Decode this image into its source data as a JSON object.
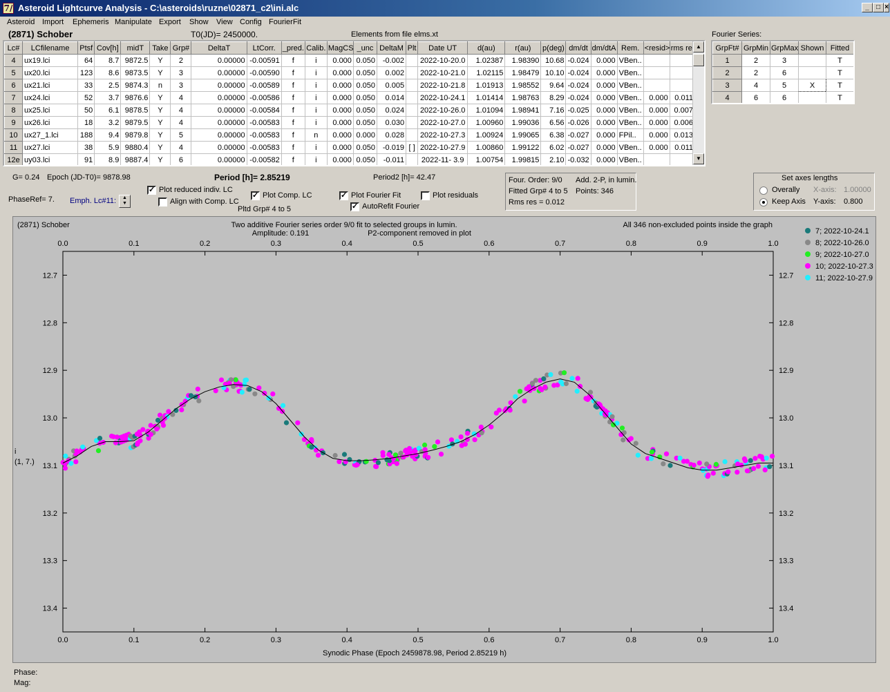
{
  "window": {
    "title": "Asteroid Lightcurve Analysis - C:\\asteroids\\ruzne\\02871_c2\\ini.alc",
    "app_icon": "7/"
  },
  "menu": [
    "Asteroid",
    "Import",
    "Ephemeris",
    "Manipulate",
    "Export",
    "Show",
    "View",
    "Config",
    "FourierFit"
  ],
  "header": {
    "object": "(2871) Schober",
    "t0": "T0(JD)= 2450000.",
    "elements": "Elements from file elms.xt",
    "fourier_label": "Fourier Series:"
  },
  "lc_table": {
    "columns": [
      "Lc#",
      "LCfilename",
      "Ptsf",
      "Cov[h]",
      "midT",
      "Take",
      "Grp#",
      "DeltaT",
      "LtCorr.",
      "_pred.",
      "Calib.",
      "MagCS",
      "_unc",
      "DeltaM",
      "Plt",
      "Date UT",
      "d(au)",
      "r(au)",
      "p(deg)",
      "dm/dt",
      "dm/dtA",
      "Rem.",
      "<resid>",
      "rms res"
    ],
    "rows": [
      [
        "4",
        "ux19.lci",
        "64",
        "8.7",
        "9872.5",
        "Y",
        "2",
        "0.00000",
        "-0.00591",
        "f",
        "i",
        "0.000",
        "0.050",
        "-0.002",
        "",
        "2022-10-20.0",
        "1.02387",
        "1.98390",
        "10.68",
        "-0.024",
        "0.000",
        "VBen..",
        "",
        ""
      ],
      [
        "5",
        "ux20.lci",
        "123",
        "8.6",
        "9873.5",
        "Y",
        "3",
        "0.00000",
        "-0.00590",
        "f",
        "i",
        "0.000",
        "0.050",
        "0.002",
        "",
        "2022-10-21.0",
        "1.02115",
        "1.98479",
        "10.10",
        "-0.024",
        "0.000",
        "VBen..",
        "",
        ""
      ],
      [
        "6",
        "ux21.lci",
        "33",
        "2.5",
        "9874.3",
        "n",
        "3",
        "0.00000",
        "-0.00589",
        "f",
        "i",
        "0.000",
        "0.050",
        "0.005",
        "",
        "2022-10-21.8",
        "1.01913",
        "1.98552",
        "9.64",
        "-0.024",
        "0.000",
        "VBen..",
        "",
        ""
      ],
      [
        "7",
        "ux24.lci",
        "52",
        "3.7",
        "9876.6",
        "Y",
        "4",
        "0.00000",
        "-0.00586",
        "f",
        "i",
        "0.000",
        "0.050",
        "0.014",
        "",
        "2022-10-24.1",
        "1.01414",
        "1.98763",
        "8.29",
        "-0.024",
        "0.000",
        "VBen..",
        "0.000",
        "0.011"
      ],
      [
        "8",
        "ux25.lci",
        "50",
        "6.1",
        "9878.5",
        "Y",
        "4",
        "0.00000",
        "-0.00584",
        "f",
        "i",
        "0.000",
        "0.050",
        "0.024",
        "",
        "2022-10-26.0",
        "1.01094",
        "1.98941",
        "7.16",
        "-0.025",
        "0.000",
        "VBen..",
        "0.000",
        "0.007"
      ],
      [
        "9",
        "ux26.lci",
        "18",
        "3.2",
        "9879.5",
        "Y",
        "4",
        "0.00000",
        "-0.00583",
        "f",
        "i",
        "0.000",
        "0.050",
        "0.030",
        "",
        "2022-10-27.0",
        "1.00960",
        "1.99036",
        "6.56",
        "-0.026",
        "0.000",
        "VBen..",
        "0.000",
        "0.006"
      ],
      [
        "10",
        "ux27_1.lci",
        "188",
        "9.4",
        "9879.8",
        "Y",
        "5",
        "0.00000",
        "-0.00583",
        "f",
        "n",
        "0.000",
        "0.000",
        "0.028",
        "",
        "2022-10-27.3",
        "1.00924",
        "1.99065",
        "6.38",
        "-0.027",
        "0.000",
        "FPil..",
        "0.000",
        "0.013"
      ],
      [
        "11",
        "ux27.lci",
        "38",
        "5.9",
        "9880.4",
        "Y",
        "4",
        "0.00000",
        "-0.00583",
        "f",
        "i",
        "0.000",
        "0.050",
        "-0.019",
        "[ ]",
        "2022-10-27.9",
        "1.00860",
        "1.99122",
        "6.02",
        "-0.027",
        "0.000",
        "VBen..",
        "0.000",
        "0.011"
      ],
      [
        "12e",
        "uy03.lci",
        "91",
        "8.9",
        "9887.4",
        "Y",
        "6",
        "0.00000",
        "-0.00582",
        "f",
        "i",
        "0.000",
        "0.050",
        "-0.011",
        "",
        "2022-11- 3.9",
        "1.00754",
        "1.99815",
        "2.10",
        "-0.032",
        "0.000",
        "VBen..",
        "",
        ""
      ]
    ]
  },
  "fourier_table": {
    "columns": [
      "GrpFt#",
      "GrpMin",
      "GrpMax",
      "Shown",
      "Fitted"
    ],
    "rows": [
      [
        "1",
        "2",
        "3",
        "",
        "T"
      ],
      [
        "2",
        "2",
        "6",
        "",
        "T"
      ],
      [
        "3",
        "4",
        "5",
        "X",
        "T"
      ],
      [
        "4",
        "6",
        "6",
        "",
        "T"
      ]
    ]
  },
  "controls": {
    "g": "G= 0.24",
    "epoch": "Epoch (JD-T0)= 9878.98",
    "period": "Period [h]= 2.85219",
    "period2": "Period2 [h]= 42.47",
    "phaseref": "PhaseRef= 7.",
    "emph": "Emph. Lc#11:",
    "plot_reduced": "Plot reduced indiv. LC",
    "align_comp": "Align with Comp. LC",
    "plot_comp": "Plot Comp. LC",
    "pltd_grp": "Pltd Grp#  4  to   5",
    "plot_fourier": "Plot Fourier Fit",
    "autorefit": "AutoRefit Fourier",
    "plot_residuals": "Plot residuals",
    "check_plot_reduced": true,
    "check_align_comp": false,
    "check_plot_comp": true,
    "check_plot_fourier": true,
    "check_autorefit": true,
    "check_plot_residuals": false
  },
  "fitinfo": {
    "order": "Four. Order:  9/0",
    "add": "Add. 2-P, in lumin.",
    "fitted": "Fitted Grp# 4 to 5",
    "points": "Points: 346",
    "rms": "Rms res      = 0.012"
  },
  "axes_box": {
    "title": "Set axes lengths",
    "overally": "Overally",
    "keep_axis": "Keep Axis",
    "xaxis_label": "X-axis:",
    "xaxis_value": "1.00000",
    "yaxis_label": "Y-axis:",
    "yaxis_value": "0.800",
    "selected": "keep_axis"
  },
  "chart_data": {
    "type": "scatter",
    "title_left": "(2871) Schober",
    "title_center_1": "Two additive Fourier series order 9/0 fit to selected groups in lumin.",
    "title_center_2": "Amplitude: 0.191",
    "title_center_3": "P2-component removed in plot",
    "title_right": "All 346 non-excluded points inside the graph",
    "xlabel": "Synodic Phase (Epoch 2459878.98, Period 2.85219 h)",
    "ylabel_1": "i",
    "ylabel_2": "(1, 7.)",
    "xlim": [
      0.0,
      1.0
    ],
    "ylim": [
      13.45,
      12.65
    ],
    "x_ticks": [
      "0.0",
      "0.1",
      "0.2",
      "0.3",
      "0.4",
      "0.5",
      "0.6",
      "0.7",
      "0.8",
      "0.9",
      "1.0"
    ],
    "y_ticks": [
      "12.7",
      "12.8",
      "12.9",
      "13.0",
      "13.1",
      "13.2",
      "13.3",
      "13.4"
    ],
    "legend_position": "right",
    "series": [
      {
        "name": "7; 2022-10-24.1",
        "color": "#1a7a7a"
      },
      {
        "name": "8; 2022-10-26.0",
        "color": "#888888"
      },
      {
        "name": "9; 2022-10-27.0",
        "color": "#22ee22"
      },
      {
        "name": "10; 2022-10-27.3",
        "color": "#ff00ff"
      },
      {
        "name": "11; 2022-10-27.9",
        "color": "#22eeff"
      }
    ],
    "fit_curve": {
      "phase": [
        0.0,
        0.02,
        0.04,
        0.06,
        0.08,
        0.1,
        0.12,
        0.14,
        0.16,
        0.18,
        0.2,
        0.22,
        0.24,
        0.26,
        0.28,
        0.3,
        0.32,
        0.34,
        0.36,
        0.38,
        0.4,
        0.42,
        0.44,
        0.46,
        0.48,
        0.5,
        0.52,
        0.54,
        0.56,
        0.58,
        0.6,
        0.62,
        0.64,
        0.66,
        0.68,
        0.7,
        0.72,
        0.74,
        0.76,
        0.78,
        0.8,
        0.82,
        0.84,
        0.86,
        0.88,
        0.9,
        0.92,
        0.94,
        0.96,
        0.98,
        1.0
      ],
      "mag": [
        13.095,
        13.08,
        13.06,
        13.05,
        13.05,
        13.048,
        13.03,
        13.005,
        12.98,
        12.96,
        12.945,
        12.935,
        12.93,
        12.932,
        12.945,
        12.97,
        13.005,
        13.04,
        13.068,
        13.085,
        13.09,
        13.09,
        13.088,
        13.085,
        13.08,
        13.075,
        13.068,
        13.06,
        13.05,
        13.035,
        13.015,
        12.99,
        12.96,
        12.94,
        12.925,
        12.918,
        12.925,
        12.95,
        12.985,
        13.02,
        13.055,
        13.075,
        13.085,
        13.095,
        13.105,
        13.11,
        13.11,
        13.105,
        13.1,
        13.095,
        13.095
      ]
    }
  },
  "status": {
    "phase": "Phase:",
    "mag": "Mag:"
  }
}
